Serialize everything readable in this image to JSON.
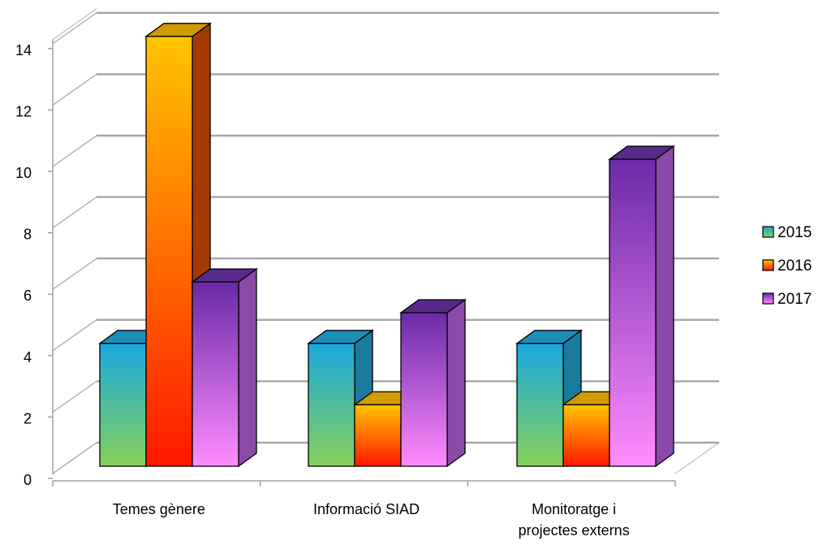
{
  "chart_data": {
    "type": "bar",
    "title": "",
    "xlabel": "",
    "ylabel": "",
    "ylim": [
      0,
      14
    ],
    "yticks": [
      0,
      2,
      4,
      6,
      8,
      10,
      12,
      14
    ],
    "grid": true,
    "legend": "right",
    "categories": [
      [
        "Temes gènere"
      ],
      [
        "Informació SIAD"
      ],
      [
        "Monitoratge i",
        "projectes externs"
      ]
    ],
    "series": [
      {
        "name": "2015",
        "values": [
          4,
          4,
          4
        ],
        "colors": {
          "top": "#1aa8de",
          "bottom": "#86d05a",
          "side": "#1a7a9c",
          "cap": "#1b8fb8"
        }
      },
      {
        "name": "2016",
        "values": [
          14,
          2,
          2
        ],
        "colors": {
          "top": "#ffc400",
          "bottom": "#ff1800",
          "side": "#a33a00",
          "cap": "#d09a00"
        }
      },
      {
        "name": "2017",
        "values": [
          6,
          5,
          10
        ],
        "colors": {
          "top": "#6a2aa8",
          "bottom": "#ff8cff",
          "side": "#8a4aa8",
          "cap": "#5a2a8a"
        }
      }
    ]
  }
}
